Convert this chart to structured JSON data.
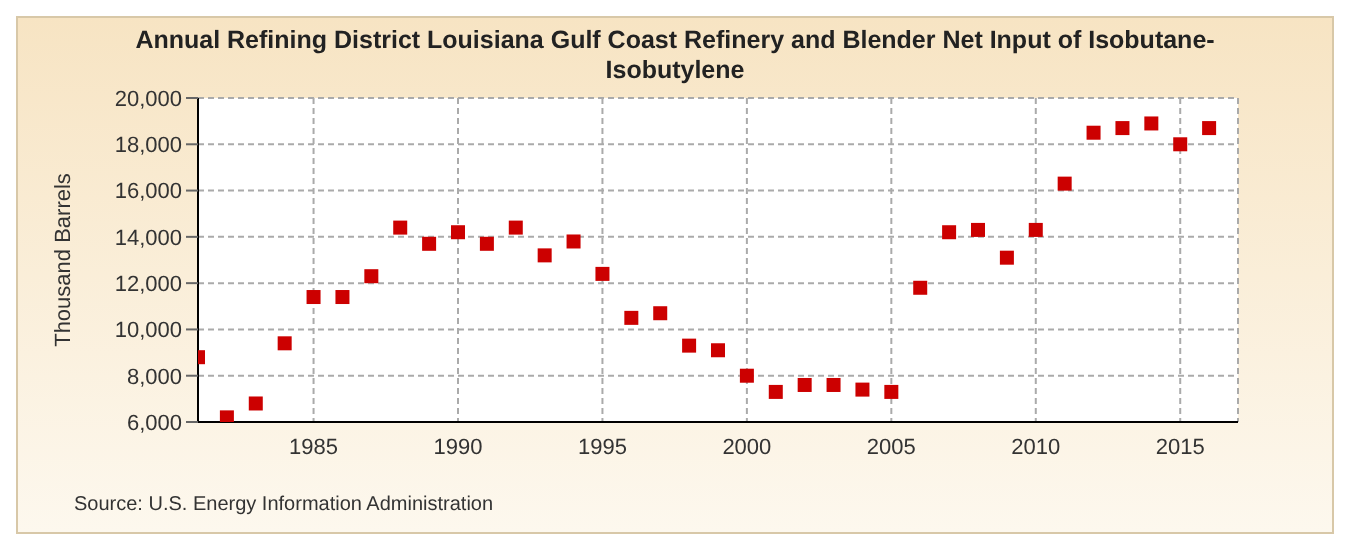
{
  "chart_data": {
    "type": "scatter",
    "title": "Annual Refining District Louisiana Gulf Coast Refinery and Blender Net Input of Isobutane-Isobutylene",
    "ylabel": "Thousand Barrels",
    "annotations": [
      "Source: U.S. Energy Information Administration"
    ],
    "x": [
      1981,
      1982,
      1983,
      1984,
      1985,
      1986,
      1987,
      1988,
      1989,
      1990,
      1991,
      1992,
      1993,
      1994,
      1995,
      1996,
      1997,
      1998,
      1999,
      2000,
      2001,
      2002,
      2003,
      2004,
      2005,
      2006,
      2007,
      2008,
      2009,
      2010,
      2011,
      2012,
      2013,
      2014,
      2015,
      2016
    ],
    "series": [
      {
        "color": "#cc0000",
        "values": [
          8800,
          6200,
          6800,
          9400,
          11400,
          11400,
          12300,
          14400,
          13700,
          14200,
          13700,
          14400,
          13200,
          13800,
          12400,
          10500,
          10700,
          9300,
          9100,
          8000,
          7300,
          7600,
          7600,
          7400,
          7300,
          11800,
          14200,
          14300,
          13100,
          14300,
          16300,
          18500,
          18700,
          18900,
          18000,
          18700
        ]
      }
    ],
    "xlim": [
      1981,
      2017
    ],
    "xticks": [
      1985,
      1990,
      1995,
      2000,
      2005,
      2010,
      2015
    ],
    "ylim": [
      6000,
      20000
    ],
    "yticks": [
      {
        "value": 6000,
        "label": "6,000"
      },
      {
        "value": 8000,
        "label": "8,000"
      },
      {
        "value": 10000,
        "label": "10,000"
      },
      {
        "value": 12000,
        "label": "12,000"
      },
      {
        "value": 14000,
        "label": "14,000"
      },
      {
        "value": 16000,
        "label": "16,000"
      },
      {
        "value": 18000,
        "label": "18,000"
      },
      {
        "value": 20000,
        "label": "20,000"
      }
    ],
    "grid": true,
    "marker": "square",
    "legend": false
  }
}
